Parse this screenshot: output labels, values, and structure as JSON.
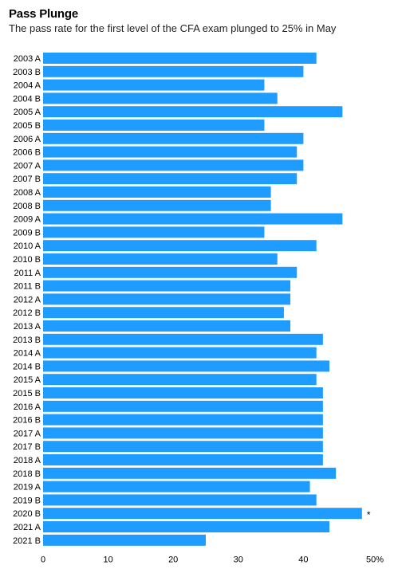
{
  "chart_data": {
    "type": "bar",
    "orientation": "horizontal",
    "title": "Pass Plunge",
    "subtitle": "The pass rate for the first level of the CFA exam plunged to 25% in May",
    "categories": [
      "2003 A",
      "2003 B",
      "2004 A",
      "2004 B",
      "2005 A",
      "2005 B",
      "2006 A",
      "2006 B",
      "2007 A",
      "2007 B",
      "2008 A",
      "2008 B",
      "2009 A",
      "2009 B",
      "2010 A",
      "2010 B",
      "2011 A",
      "2011 B",
      "2012 A",
      "2012 B",
      "2013 A",
      "2013 B",
      "2014 A",
      "2014 B",
      "2015 A",
      "2015 B",
      "2016 A",
      "2016 B",
      "2017 A",
      "2017 B",
      "2018 A",
      "2018 B",
      "2019 A",
      "2019 B",
      "2020 B",
      "2021 A",
      "2021 B"
    ],
    "values": [
      42,
      40,
      34,
      36,
      46,
      34,
      40,
      39,
      40,
      39,
      35,
      35,
      46,
      34,
      42,
      36,
      39,
      38,
      38,
      37,
      38,
      43,
      42,
      44,
      42,
      43,
      43,
      43,
      43,
      43,
      43,
      45,
      41,
      42,
      49,
      44,
      25
    ],
    "x_ticks": [
      "0",
      "10",
      "20",
      "30",
      "40",
      "50%"
    ],
    "xlim": [
      0,
      50
    ],
    "grid": false,
    "bar_color": "#1e9cff",
    "annotations": [
      {
        "category": "2020 B",
        "text": "*"
      }
    ]
  }
}
